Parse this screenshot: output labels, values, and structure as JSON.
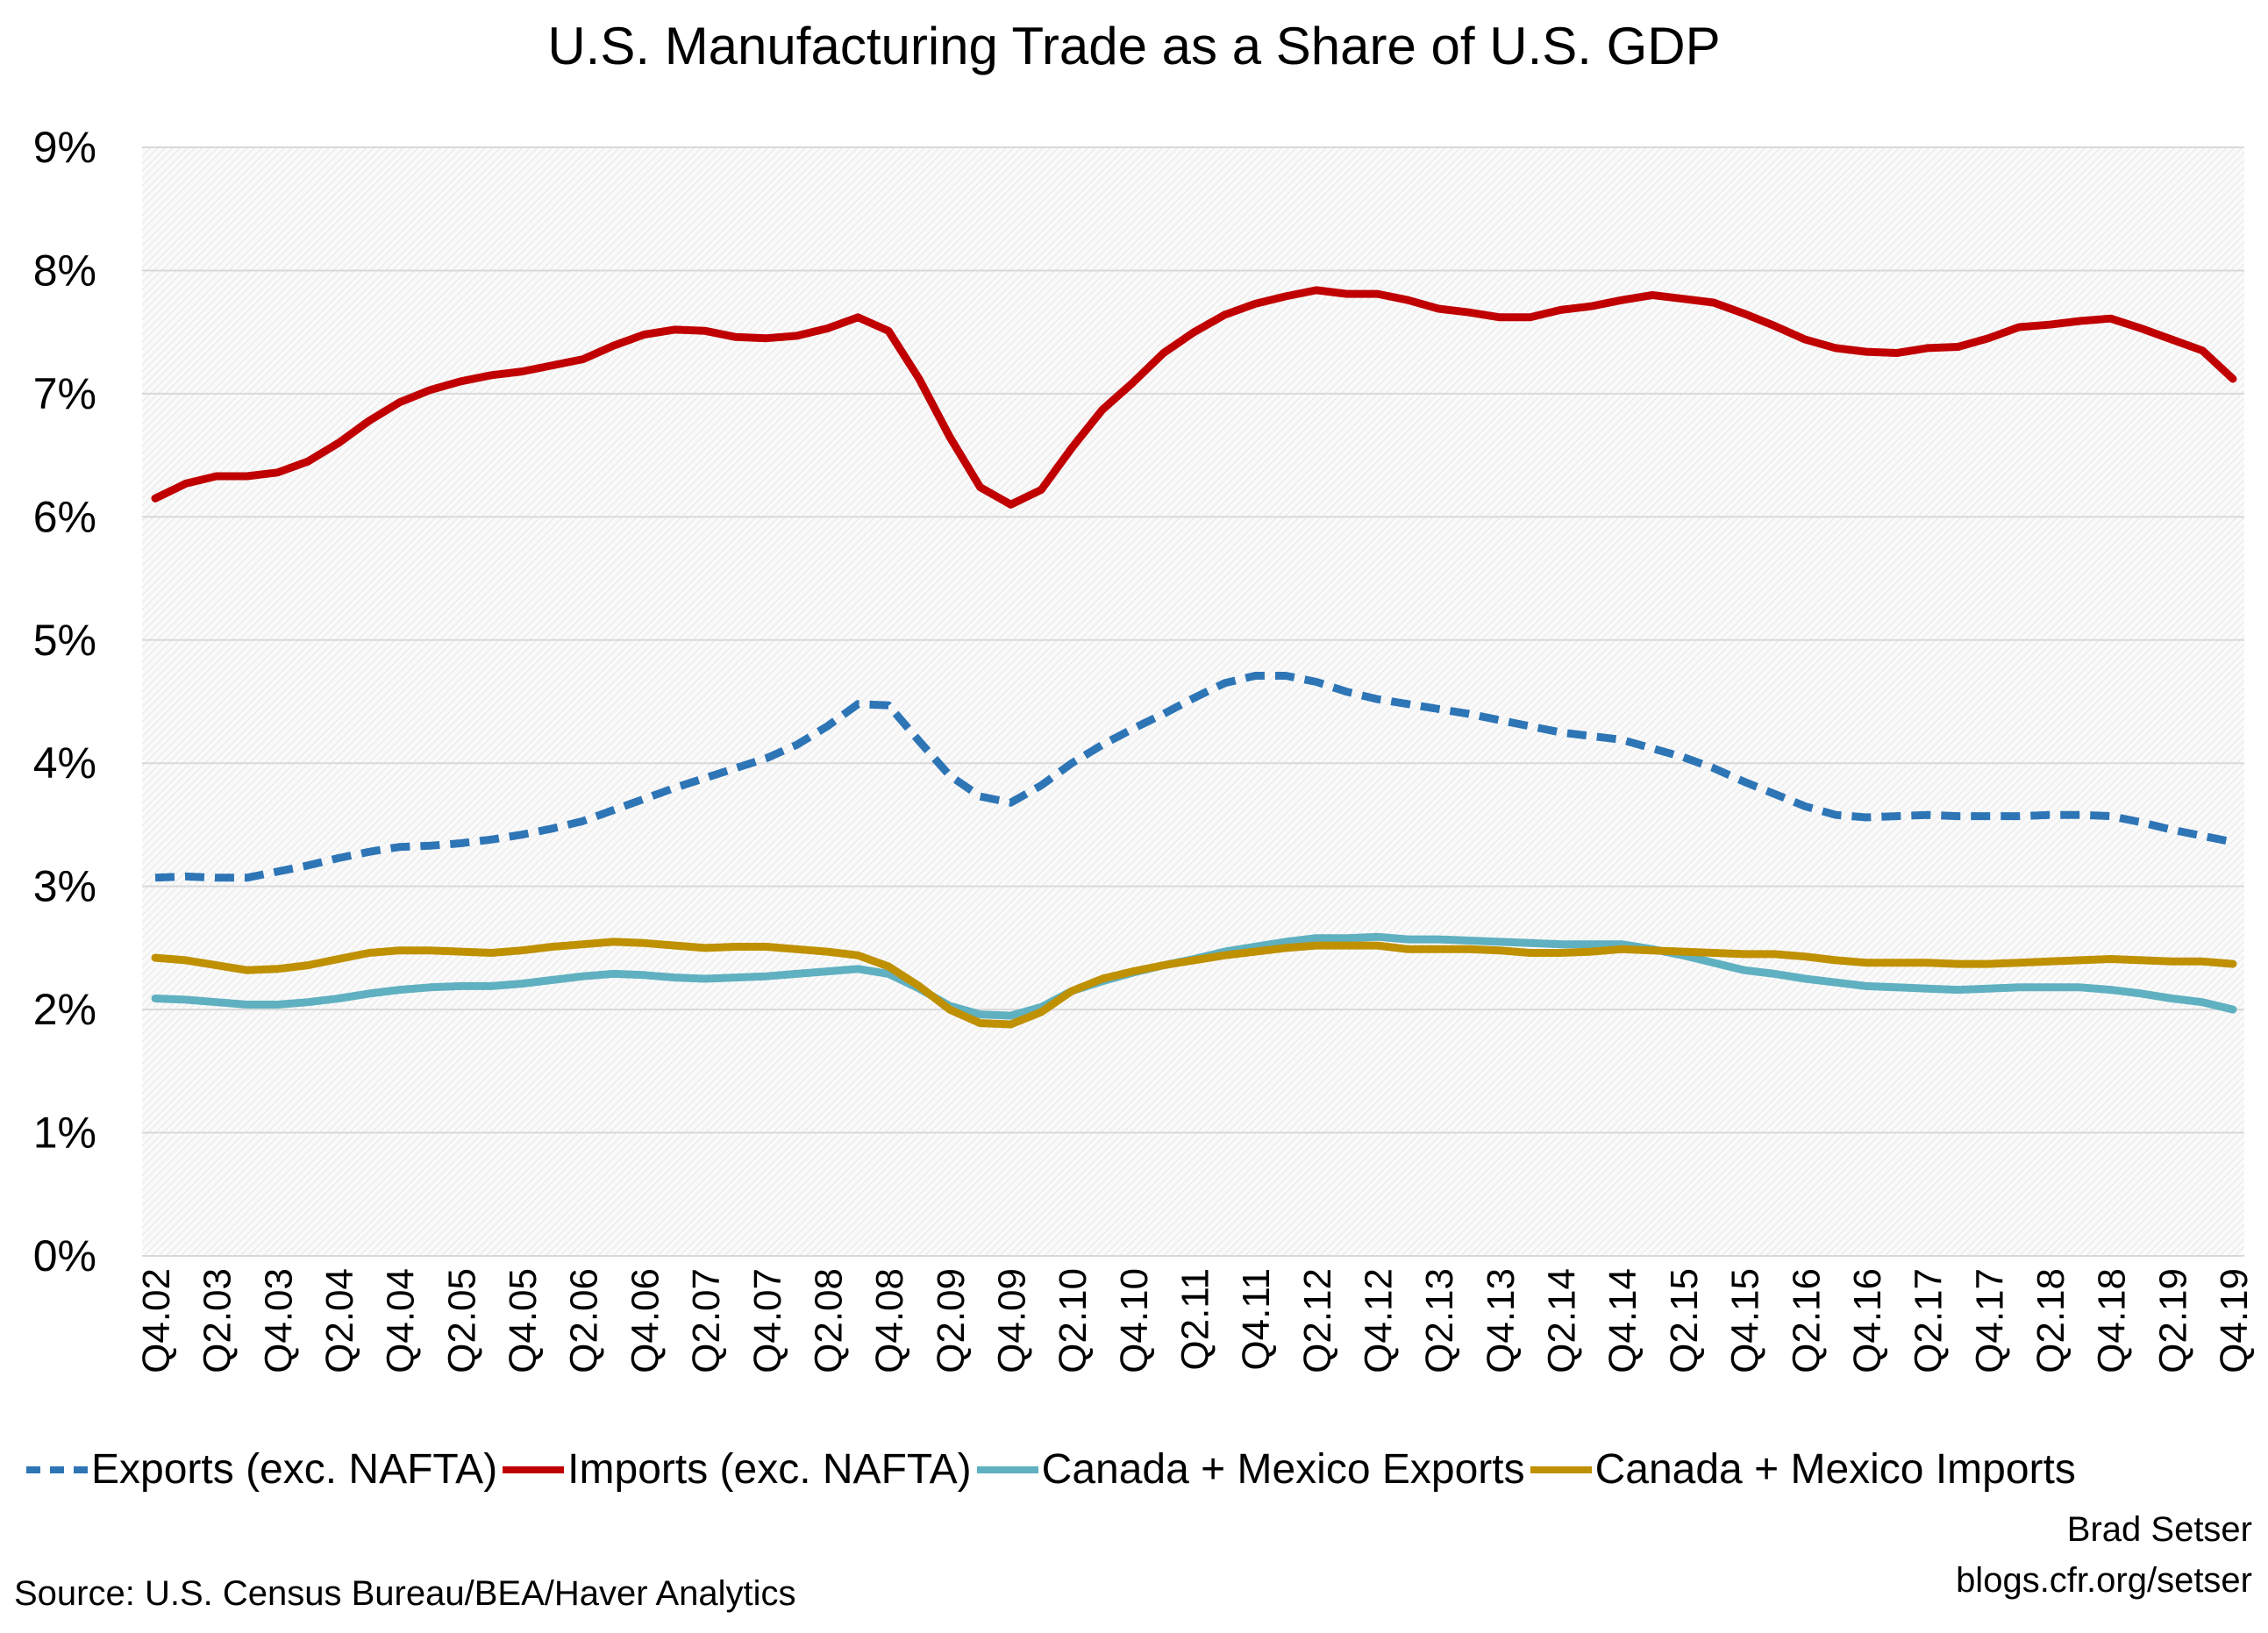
{
  "chart_data": {
    "type": "line",
    "title": "U.S. Manufacturing Trade as a Share of U.S. GDP",
    "xlabel": "",
    "ylabel": "",
    "ylim": [
      0,
      9
    ],
    "yticks": [
      "0%",
      "1%",
      "2%",
      "3%",
      "4%",
      "5%",
      "6%",
      "7%",
      "8%",
      "9%"
    ],
    "grid": true,
    "legend_position": "bottom",
    "x": [
      "Q4.02",
      "Q1.03",
      "Q2.03",
      "Q3.03",
      "Q4.03",
      "Q1.04",
      "Q2.04",
      "Q3.04",
      "Q4.04",
      "Q1.05",
      "Q2.05",
      "Q3.05",
      "Q4.05",
      "Q1.06",
      "Q2.06",
      "Q3.06",
      "Q4.06",
      "Q1.07",
      "Q2.07",
      "Q3.07",
      "Q4.07",
      "Q1.08",
      "Q2.08",
      "Q3.08",
      "Q4.08",
      "Q1.09",
      "Q2.09",
      "Q3.09",
      "Q4.09",
      "Q1.10",
      "Q2.10",
      "Q3.10",
      "Q4.10",
      "Q1.11",
      "Q2.11",
      "Q3.11",
      "Q4.11",
      "Q1.12",
      "Q2.12",
      "Q3.12",
      "Q4.12",
      "Q1.13",
      "Q2.13",
      "Q3.13",
      "Q4.13",
      "Q1.14",
      "Q2.14",
      "Q3.14",
      "Q4.14",
      "Q1.15",
      "Q2.15",
      "Q3.15",
      "Q4.15",
      "Q1.16",
      "Q2.16",
      "Q3.16",
      "Q4.16",
      "Q1.17",
      "Q2.17",
      "Q3.17",
      "Q4.17",
      "Q1.18",
      "Q2.18",
      "Q3.18",
      "Q4.18",
      "Q1.19",
      "Q2.19",
      "Q3.19",
      "Q4.19"
    ],
    "xtick_labels": [
      "Q4.02",
      "Q2.03",
      "Q4.03",
      "Q2.04",
      "Q4.04",
      "Q2.05",
      "Q4.05",
      "Q2.06",
      "Q4.06",
      "Q2.07",
      "Q4.07",
      "Q2.08",
      "Q4.08",
      "Q2.09",
      "Q4.09",
      "Q2.10",
      "Q4.10",
      "Q2.11",
      "Q4.11",
      "Q2.12",
      "Q4.12",
      "Q2.13",
      "Q4.13",
      "Q2.14",
      "Q4.14",
      "Q2.15",
      "Q4.15",
      "Q2.16",
      "Q4.16",
      "Q2.17",
      "Q4.17",
      "Q2.18",
      "Q4.18",
      "Q2.19",
      "Q4.19"
    ],
    "series": [
      {
        "name": "Exports (exc. NAFTA)",
        "color": "#2e75b6",
        "dash": true,
        "values": [
          3.07,
          3.08,
          3.07,
          3.07,
          3.12,
          3.17,
          3.23,
          3.28,
          3.32,
          3.33,
          3.35,
          3.38,
          3.42,
          3.47,
          3.53,
          3.62,
          3.71,
          3.8,
          3.88,
          3.96,
          4.04,
          4.15,
          4.3,
          4.48,
          4.47,
          4.18,
          3.9,
          3.73,
          3.68,
          3.82,
          4.0,
          4.15,
          4.28,
          4.4,
          4.53,
          4.65,
          4.71,
          4.71,
          4.66,
          4.58,
          4.52,
          4.48,
          4.44,
          4.4,
          4.35,
          4.3,
          4.25,
          4.22,
          4.19,
          4.12,
          4.05,
          3.96,
          3.85,
          3.75,
          3.65,
          3.58,
          3.56,
          3.57,
          3.58,
          3.57,
          3.57,
          3.57,
          3.58,
          3.58,
          3.57,
          3.52,
          3.46,
          3.41,
          3.36
        ]
      },
      {
        "name": "Imports (exc. NAFTA)",
        "color": "#c00000",
        "dash": false,
        "values": [
          6.15,
          6.27,
          6.33,
          6.33,
          6.36,
          6.45,
          6.6,
          6.78,
          6.93,
          7.03,
          7.1,
          7.15,
          7.18,
          7.23,
          7.28,
          7.39,
          7.48,
          7.52,
          7.51,
          7.46,
          7.45,
          7.47,
          7.53,
          7.62,
          7.51,
          7.12,
          6.65,
          6.24,
          6.1,
          6.22,
          6.56,
          6.87,
          7.09,
          7.33,
          7.5,
          7.64,
          7.73,
          7.79,
          7.84,
          7.81,
          7.81,
          7.76,
          7.69,
          7.66,
          7.62,
          7.62,
          7.68,
          7.71,
          7.76,
          7.8,
          7.77,
          7.74,
          7.65,
          7.55,
          7.44,
          7.37,
          7.34,
          7.33,
          7.37,
          7.38,
          7.45,
          7.54,
          7.56,
          7.59,
          7.61,
          7.53,
          7.44,
          7.35,
          7.12
        ]
      },
      {
        "name": "Canada + Mexico Exports",
        "color": "#5fb0c0",
        "dash": false,
        "values": [
          2.09,
          2.08,
          2.06,
          2.04,
          2.04,
          2.06,
          2.09,
          2.13,
          2.16,
          2.18,
          2.19,
          2.19,
          2.21,
          2.24,
          2.27,
          2.29,
          2.28,
          2.26,
          2.25,
          2.26,
          2.27,
          2.29,
          2.31,
          2.33,
          2.29,
          2.17,
          2.03,
          1.96,
          1.95,
          2.02,
          2.15,
          2.23,
          2.3,
          2.36,
          2.41,
          2.47,
          2.51,
          2.55,
          2.58,
          2.58,
          2.59,
          2.57,
          2.57,
          2.56,
          2.55,
          2.54,
          2.53,
          2.53,
          2.53,
          2.49,
          2.44,
          2.38,
          2.32,
          2.29,
          2.25,
          2.22,
          2.19,
          2.18,
          2.17,
          2.16,
          2.17,
          2.18,
          2.18,
          2.18,
          2.16,
          2.13,
          2.09,
          2.06,
          2.0
        ]
      },
      {
        "name": "Canada + Mexico Imports",
        "color": "#bf9000",
        "dash": false,
        "values": [
          2.42,
          2.4,
          2.36,
          2.32,
          2.33,
          2.36,
          2.41,
          2.46,
          2.48,
          2.48,
          2.47,
          2.46,
          2.48,
          2.51,
          2.53,
          2.55,
          2.54,
          2.52,
          2.5,
          2.51,
          2.51,
          2.49,
          2.47,
          2.44,
          2.35,
          2.19,
          2.0,
          1.89,
          1.88,
          1.98,
          2.15,
          2.25,
          2.31,
          2.36,
          2.4,
          2.44,
          2.47,
          2.5,
          2.52,
          2.52,
          2.52,
          2.49,
          2.49,
          2.49,
          2.48,
          2.46,
          2.46,
          2.47,
          2.49,
          2.48,
          2.47,
          2.46,
          2.45,
          2.45,
          2.43,
          2.4,
          2.38,
          2.38,
          2.38,
          2.37,
          2.37,
          2.38,
          2.39,
          2.4,
          2.41,
          2.4,
          2.39,
          2.39,
          2.37
        ]
      }
    ]
  },
  "credit": {
    "author": "Brad Setser",
    "url": "blogs.cfr.org/setser"
  },
  "source": "Source: U.S. Census Bureau/BEA/Haver Analytics"
}
